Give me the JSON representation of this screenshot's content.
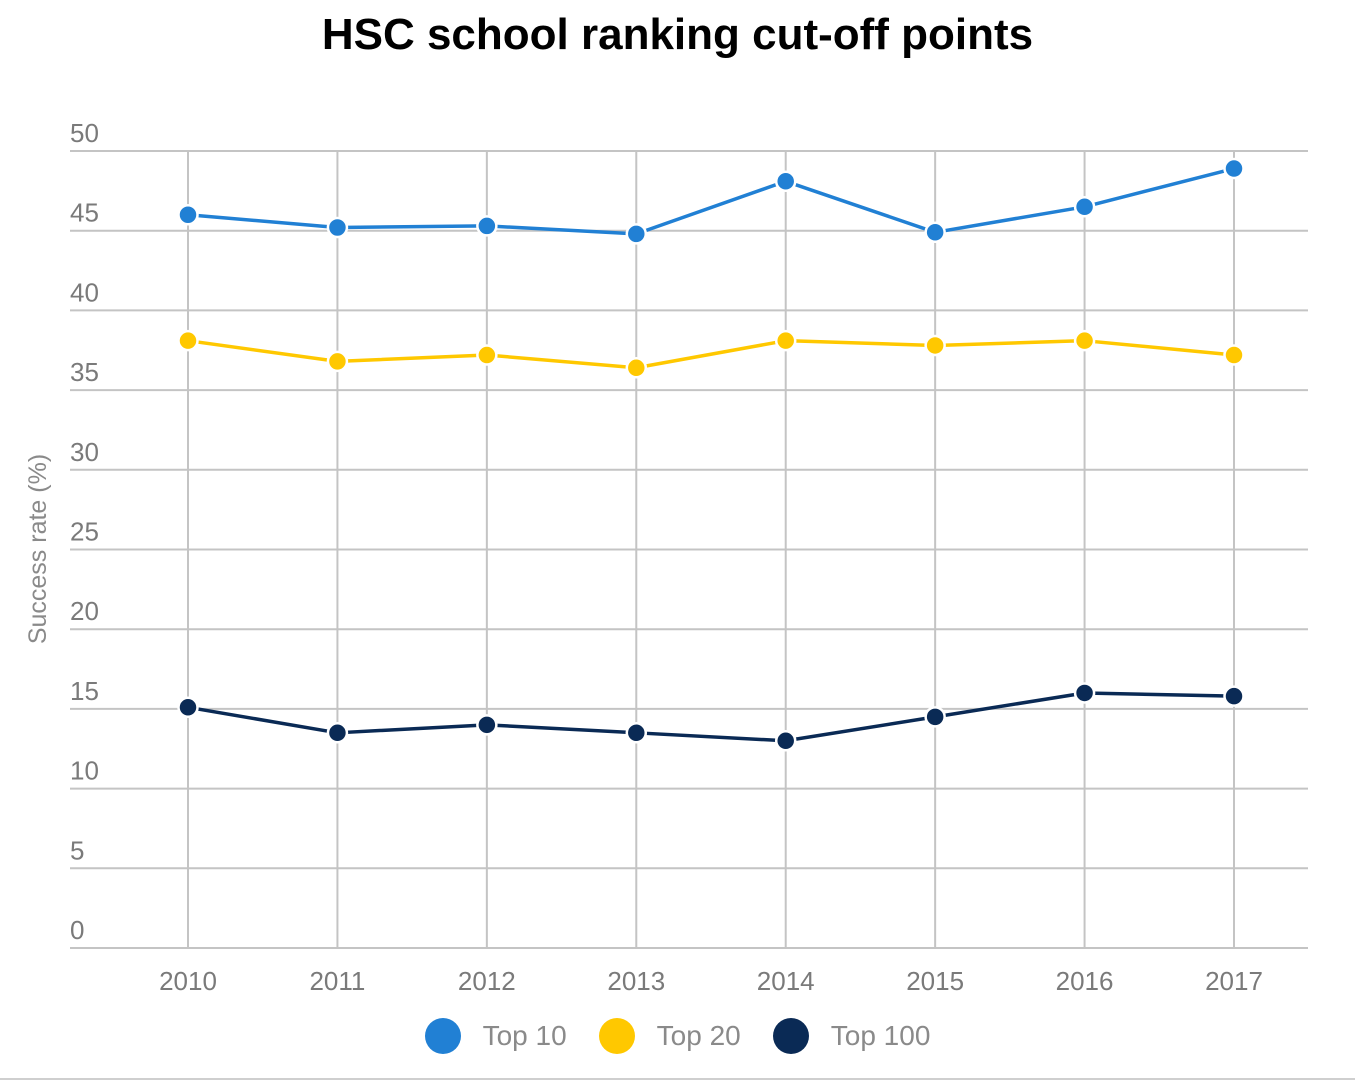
{
  "chart_data": {
    "type": "line",
    "title": "HSC school ranking cut-off points",
    "ylabel": "Success rate (%)",
    "xlabel": "",
    "x": [
      "2010",
      "2011",
      "2012",
      "2013",
      "2014",
      "2015",
      "2016",
      "2017"
    ],
    "ylim": [
      0,
      50
    ],
    "yticks": [
      0,
      5,
      10,
      15,
      20,
      25,
      30,
      35,
      40,
      45,
      50
    ],
    "grid": true,
    "legend_position": "bottom",
    "series": [
      {
        "name": "Top 10",
        "color": "#2180d4",
        "values": [
          46.0,
          45.2,
          45.3,
          44.8,
          48.1,
          44.9,
          46.5,
          48.9
        ]
      },
      {
        "name": "Top 20",
        "color": "#ffc800",
        "values": [
          38.1,
          36.8,
          37.2,
          36.4,
          38.1,
          37.8,
          38.1,
          37.2
        ]
      },
      {
        "name": "Top 100",
        "color": "#0a2a55",
        "values": [
          15.1,
          13.5,
          14.0,
          13.5,
          13.0,
          14.5,
          16.0,
          15.8
        ]
      }
    ]
  }
}
